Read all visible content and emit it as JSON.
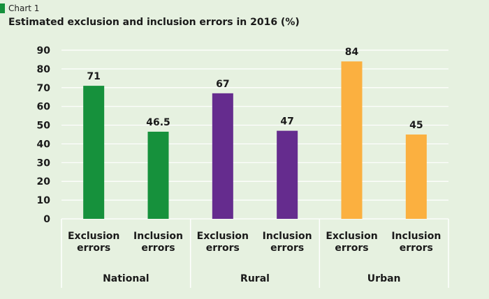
{
  "header": {
    "chart_label": "Chart 1",
    "title": "Estimated exclusion and inclusion errors in 2016 (%)"
  },
  "colors": {
    "background": "#e6f1e0",
    "gridline": "#ffffff",
    "national": "#16913c",
    "rural": "#652c8e",
    "urban": "#fbb040",
    "tag": "#16913c"
  },
  "chart_data": {
    "type": "bar",
    "title": "Estimated exclusion and inclusion errors in 2016 (%)",
    "xlabel": "",
    "ylabel": "",
    "ylim": [
      0,
      90
    ],
    "yticks": [
      0,
      10,
      20,
      30,
      40,
      50,
      60,
      70,
      80,
      90
    ],
    "grid": true,
    "groups": [
      {
        "name": "National",
        "color": "#16913c",
        "bars": [
          {
            "category": [
              "Exclusion",
              "errors"
            ],
            "value": 71,
            "label": "71"
          },
          {
            "category": [
              "Inclusion",
              "errors"
            ],
            "value": 46.5,
            "label": "46.5"
          }
        ]
      },
      {
        "name": "Rural",
        "color": "#652c8e",
        "bars": [
          {
            "category": [
              "Exclusion",
              "errors"
            ],
            "value": 67,
            "label": "67"
          },
          {
            "category": [
              "Inclusion",
              "errors"
            ],
            "value": 47,
            "label": "47"
          }
        ]
      },
      {
        "name": "Urban",
        "color": "#fbb040",
        "bars": [
          {
            "category": [
              "Exclusion",
              "errors"
            ],
            "value": 84,
            "label": "84"
          },
          {
            "category": [
              "Inclusion",
              "errors"
            ],
            "value": 45,
            "label": "45"
          }
        ]
      }
    ]
  }
}
